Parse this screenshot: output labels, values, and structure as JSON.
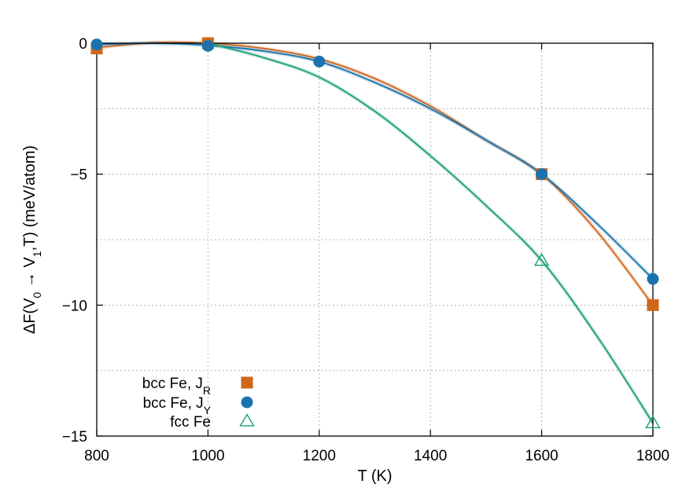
{
  "chart_data": {
    "type": "line",
    "xlabel": "T (K)",
    "ylabel": "ΔF(V0 → V1,T) (meV/atom)",
    "ylabel_parts": {
      "lhs": "ΔF(V",
      "sub0": "0",
      "arrow": " → V",
      "sub1": "1",
      "rhs": ",T) (meV/atom)"
    },
    "xlim": [
      800,
      1800
    ],
    "ylim": [
      -15,
      0
    ],
    "xticks": [
      800,
      1000,
      1200,
      1400,
      1600,
      1800
    ],
    "yticks": [
      0,
      -5,
      -10,
      -15
    ],
    "ytick_labels": [
      "0",
      "−5",
      "−10",
      "−15"
    ],
    "grid": true,
    "legend_position": "bottom-left",
    "series": [
      {
        "name": "bcc Fe, JR",
        "legend": {
          "main": "bcc Fe, J",
          "sub": "R"
        },
        "marker": "square",
        "color": "#d0661a",
        "x": [
          800,
          1000,
          1600,
          1800
        ],
        "y": [
          -0.2,
          0.0,
          -5.0,
          -10.0
        ],
        "fit_x": [
          800,
          900,
          1000,
          1100,
          1200,
          1300,
          1400,
          1500,
          1600,
          1700,
          1800
        ],
        "fit_y": [
          -0.17,
          0.02,
          0.0,
          -0.2,
          -0.6,
          -1.35,
          -2.4,
          -3.7,
          -5.0,
          -7.2,
          -10.0
        ]
      },
      {
        "name": "bcc Fe, JY",
        "legend": {
          "main": "bcc Fe, J",
          "sub": "Y"
        },
        "marker": "circle",
        "color": "#1a73ad",
        "x": [
          800,
          1000,
          1200,
          1600,
          1800
        ],
        "y": [
          -0.05,
          -0.1,
          -0.7,
          -5.0,
          -9.0
        ],
        "fit_x": [
          800,
          900,
          1000,
          1100,
          1200,
          1300,
          1400,
          1500,
          1600,
          1700,
          1800
        ],
        "fit_y": [
          -0.05,
          0.0,
          -0.08,
          -0.3,
          -0.7,
          -1.5,
          -2.5,
          -3.7,
          -5.0,
          -6.9,
          -9.0
        ]
      },
      {
        "name": "fcc Fe",
        "legend": {
          "main": "fcc Fe",
          "sub": ""
        },
        "marker": "triangle-open",
        "color": "#1c9e77",
        "x": [
          1600,
          1800
        ],
        "y": [
          -8.3,
          -14.5
        ],
        "fit_x": [
          1000,
          1100,
          1200,
          1300,
          1400,
          1500,
          1600,
          1700,
          1800
        ],
        "fit_y": [
          0.0,
          -0.55,
          -1.3,
          -2.6,
          -4.3,
          -6.2,
          -8.3,
          -11.2,
          -14.5
        ]
      }
    ]
  }
}
